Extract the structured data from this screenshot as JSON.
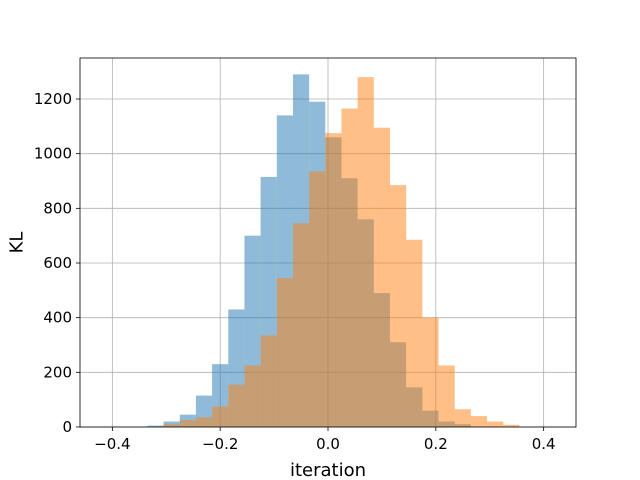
{
  "chart_data": {
    "type": "histogram",
    "title": "",
    "xlabel": "iteration",
    "ylabel": "KL",
    "xlim": [
      -0.46,
      0.46
    ],
    "ylim": [
      0,
      1350
    ],
    "xticks": [
      -0.4,
      -0.2,
      0.0,
      0.2,
      0.4
    ],
    "xtick_labels": [
      "−0.4",
      "−0.2",
      "0.0",
      "0.2",
      "0.4"
    ],
    "yticks": [
      0,
      200,
      400,
      600,
      800,
      1000,
      1200
    ],
    "ytick_labels": [
      "0",
      "200",
      "400",
      "600",
      "800",
      "1000",
      "1200"
    ],
    "grid": true,
    "legend": false,
    "series": [
      {
        "color": "#1f77b4",
        "opacity": 0.5,
        "bin_edges": [
          -0.335,
          -0.305,
          -0.275,
          -0.245,
          -0.215,
          -0.185,
          -0.155,
          -0.125,
          -0.095,
          -0.065,
          -0.035,
          -0.005,
          0.025,
          0.055,
          0.085,
          0.115,
          0.145,
          0.175,
          0.205,
          0.235,
          0.265
        ],
        "counts": [
          5,
          20,
          45,
          115,
          230,
          430,
          700,
          915,
          1140,
          1290,
          1190,
          1060,
          910,
          760,
          490,
          310,
          145,
          60,
          20,
          10
        ]
      },
      {
        "color": "#ff7f0e",
        "opacity": 0.5,
        "bin_edges": [
          -0.305,
          -0.275,
          -0.245,
          -0.215,
          -0.185,
          -0.155,
          -0.125,
          -0.095,
          -0.065,
          -0.035,
          -0.005,
          0.025,
          0.055,
          0.085,
          0.115,
          0.145,
          0.175,
          0.205,
          0.235,
          0.265,
          0.295,
          0.325,
          0.355
        ],
        "counts": [
          10,
          25,
          35,
          75,
          155,
          225,
          335,
          545,
          745,
          935,
          1075,
          1165,
          1280,
          1095,
          885,
          685,
          400,
          225,
          65,
          40,
          20,
          8
        ]
      }
    ]
  }
}
